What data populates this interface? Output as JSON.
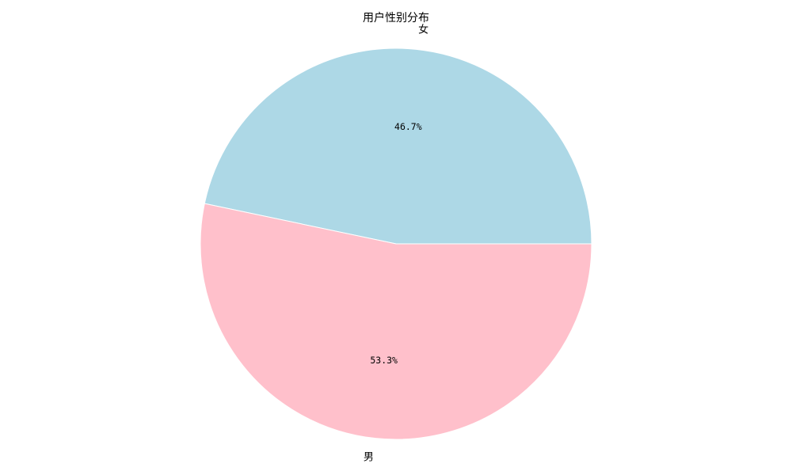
{
  "chart_data": {
    "type": "pie",
    "title": "用户性别分布",
    "categories": [
      "女",
      "男"
    ],
    "values": [
      46.7,
      53.3
    ],
    "value_labels": [
      "46.7%",
      "53.3%"
    ],
    "colors": [
      "#add8e6",
      "#ffc0cb"
    ],
    "start_angle_deg": 0,
    "direction": "counterclockwise",
    "legend": "none",
    "grid": false
  }
}
